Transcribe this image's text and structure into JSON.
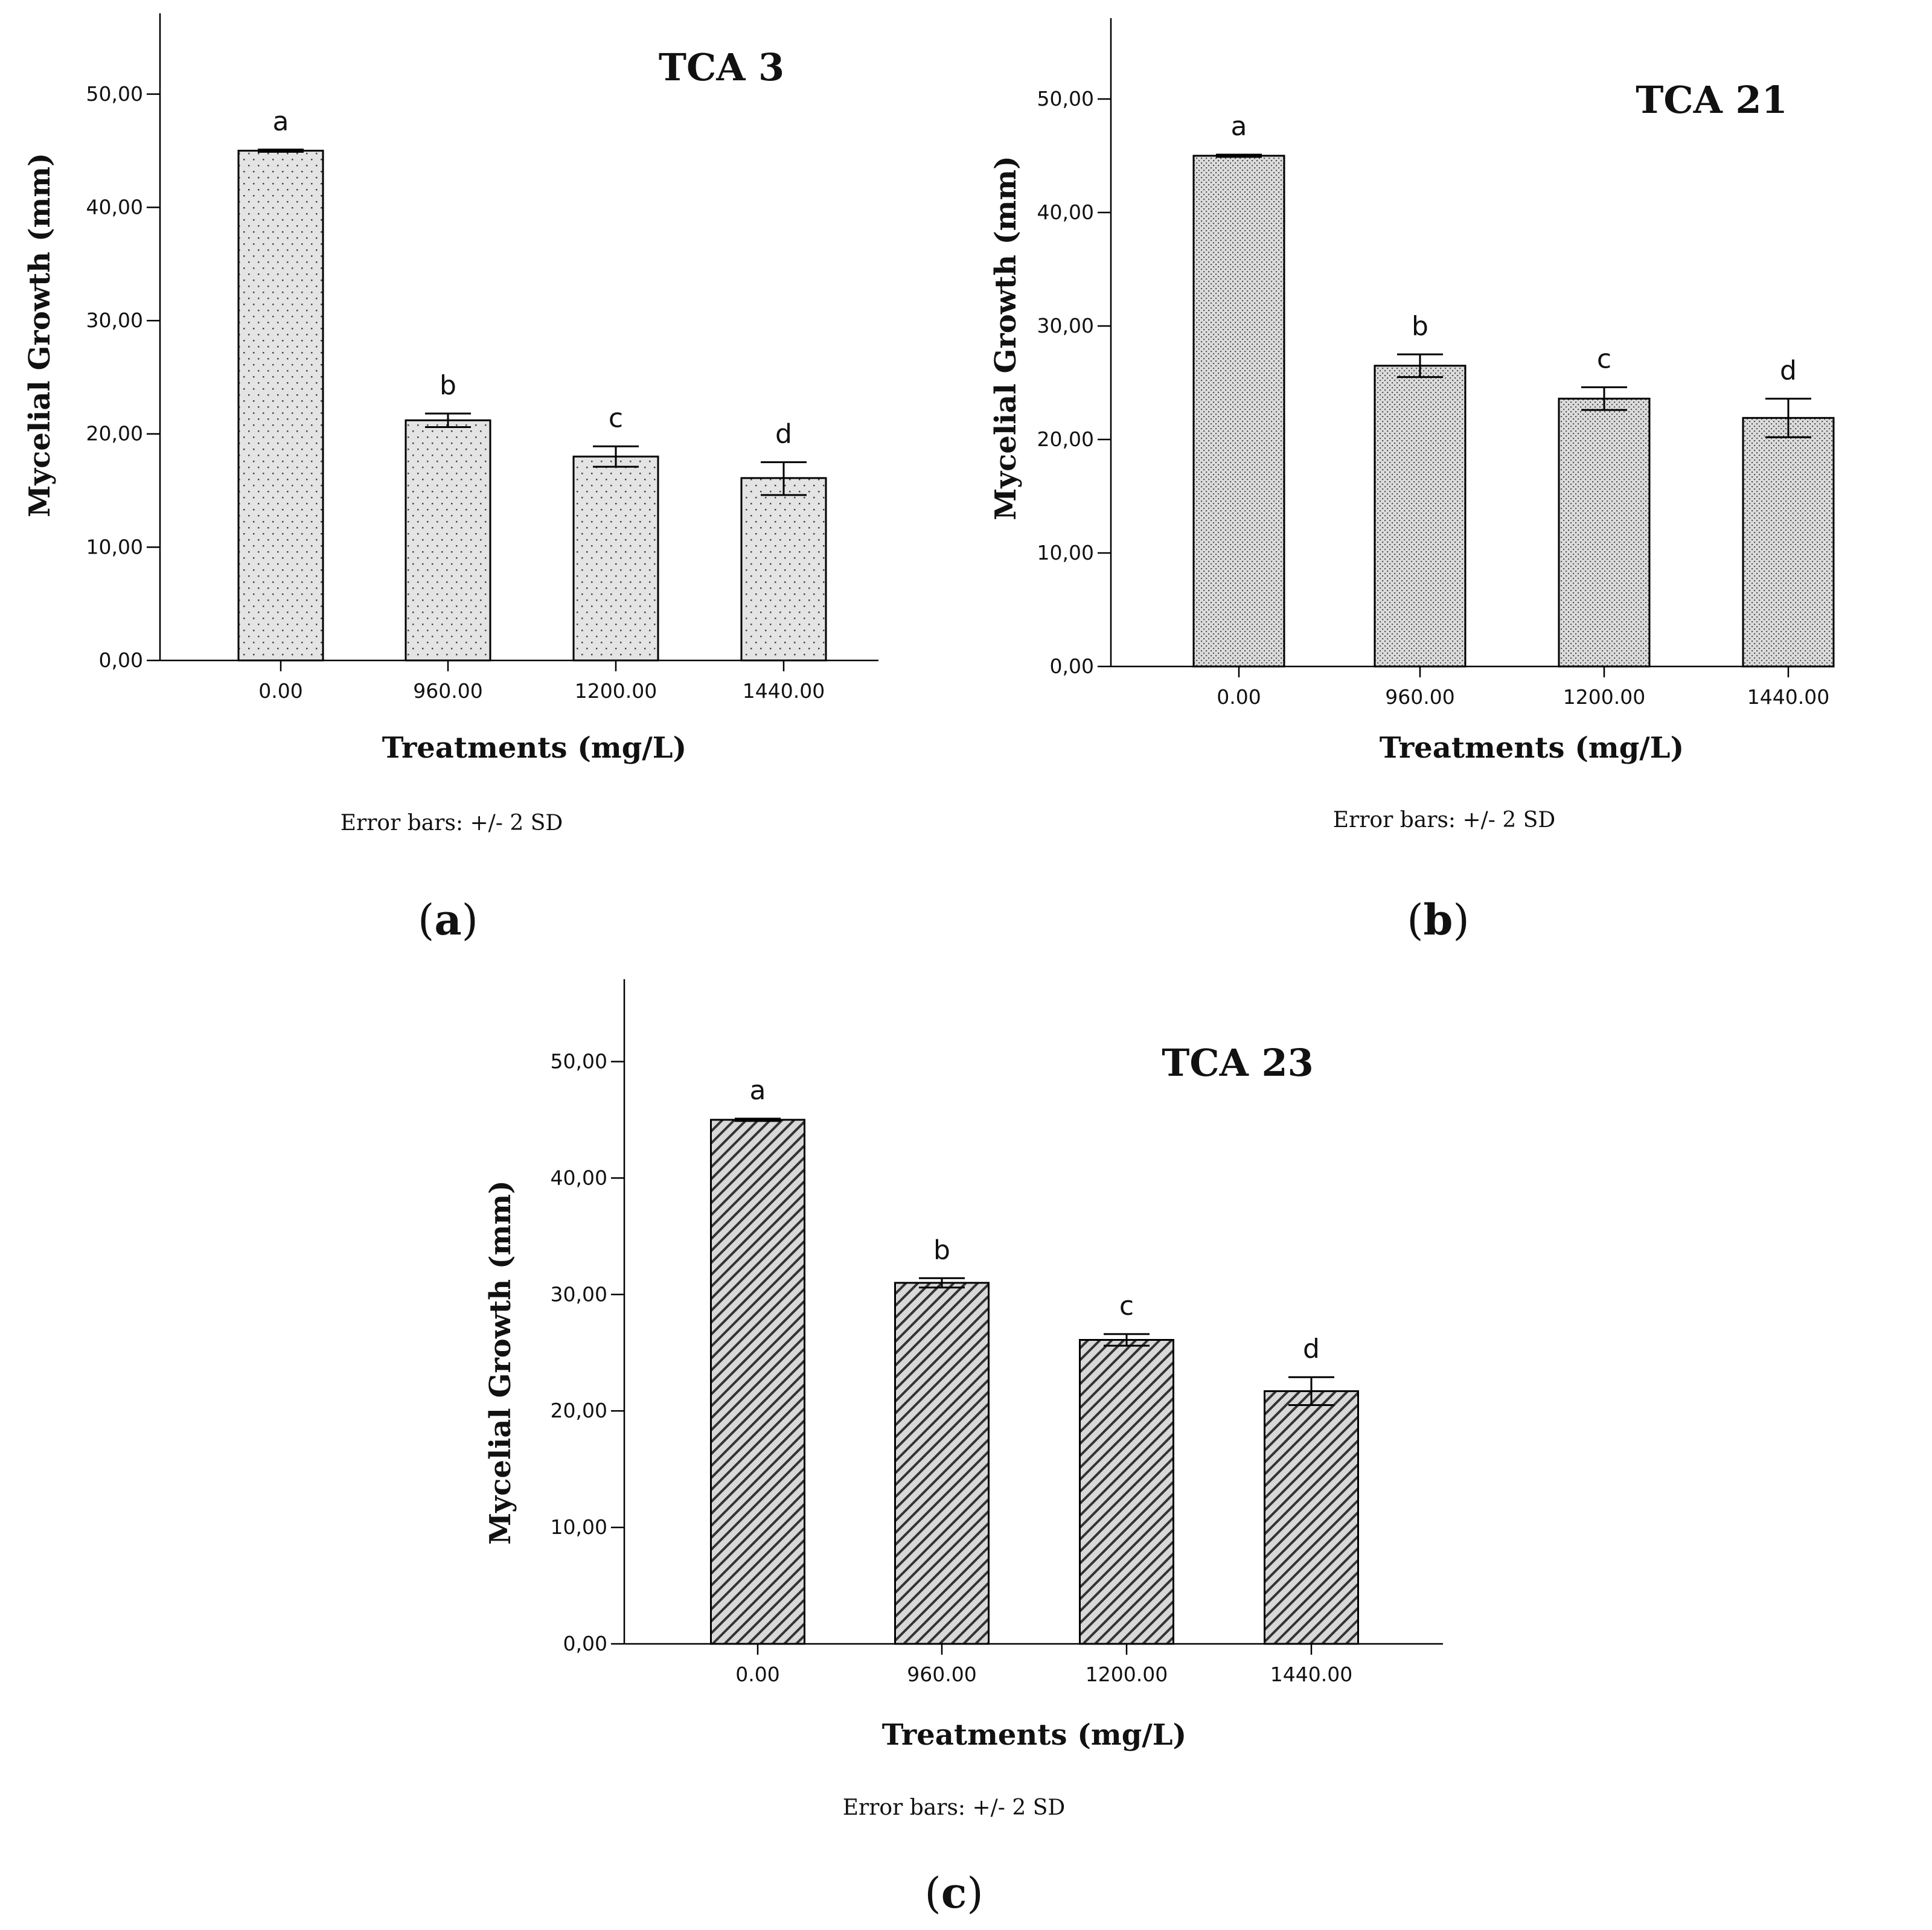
{
  "chart_data": [
    {
      "type": "bar",
      "title": "TCA 3",
      "panel": "a",
      "xlabel": "Treatments (mg/L)",
      "ylabel": "Mycelial Growth (mm)",
      "ylim": [
        0,
        55
      ],
      "yticks": [
        "0,00",
        "10,00",
        "20,00",
        "30,00",
        "40,00",
        "50,00"
      ],
      "ytick_values": [
        0,
        10,
        20,
        30,
        40,
        50
      ],
      "categories": [
        "0.00",
        "960.00",
        "1200.00",
        "1440.00"
      ],
      "values": [
        45.0,
        21.2,
        18.0,
        16.1
      ],
      "error_minus": [
        44.9,
        20.6,
        17.1,
        14.6
      ],
      "error_plus": [
        45.1,
        21.8,
        18.9,
        17.5
      ],
      "significance": [
        "a",
        "b",
        "c",
        "d"
      ],
      "note": "Error bars: +/- 2 SD",
      "pattern": "dots"
    },
    {
      "type": "bar",
      "title": "TCA 21",
      "panel": "b",
      "xlabel": "Treatments (mg/L)",
      "ylabel": "Mycelial Growth (mm)",
      "ylim": [
        0,
        55
      ],
      "yticks": [
        "0,00",
        "10,00",
        "20,00",
        "30,00",
        "40,00",
        "50,00"
      ],
      "ytick_values": [
        0,
        10,
        20,
        30,
        40,
        50
      ],
      "categories": [
        "0.00",
        "960.00",
        "1200.00",
        "1440.00"
      ],
      "values": [
        45.0,
        26.5,
        23.6,
        21.9
      ],
      "error_minus": [
        44.9,
        25.5,
        22.6,
        20.2
      ],
      "error_plus": [
        45.1,
        27.5,
        24.6,
        23.6
      ],
      "significance": [
        "a",
        "b",
        "c",
        "d"
      ],
      "note": "Error bars: +/- 2 SD",
      "pattern": "dense-dots"
    },
    {
      "type": "bar",
      "title": "TCA 23",
      "panel": "c",
      "xlabel": "Treatments (mg/L)",
      "ylabel": "Mycelial Growth (mm)",
      "ylim": [
        0,
        55
      ],
      "yticks": [
        "0,00",
        "10,00",
        "20,00",
        "30,00",
        "40,00",
        "50,00"
      ],
      "ytick_values": [
        0,
        10,
        20,
        30,
        40,
        50
      ],
      "categories": [
        "0.00",
        "960.00",
        "1200.00",
        "1440.00"
      ],
      "values": [
        45.0,
        31.0,
        26.1,
        21.7
      ],
      "error_minus": [
        44.9,
        30.6,
        25.6,
        20.5
      ],
      "error_plus": [
        45.1,
        31.4,
        26.6,
        22.9
      ],
      "significance": [
        "a",
        "b",
        "c",
        "d"
      ],
      "note": "Error bars: +/- 2 SD",
      "pattern": "diagonal"
    }
  ]
}
